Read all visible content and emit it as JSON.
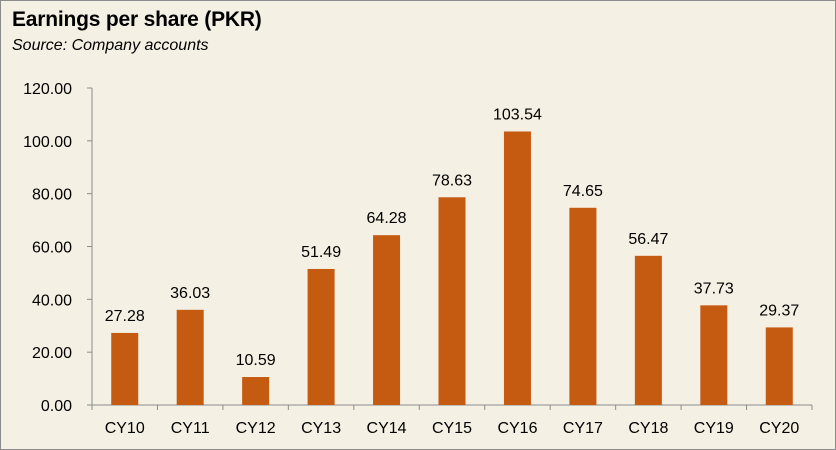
{
  "chart_data": {
    "type": "bar",
    "title": "Earnings per share (PKR)",
    "subtitle": "Source: Company accounts",
    "xlabel": "",
    "ylabel": "",
    "categories": [
      "CY10",
      "CY11",
      "CY12",
      "CY13",
      "CY14",
      "CY15",
      "CY16",
      "CY17",
      "CY18",
      "CY19",
      "CY20"
    ],
    "values": [
      27.28,
      36.03,
      10.59,
      51.49,
      64.28,
      78.63,
      103.54,
      74.65,
      56.47,
      37.73,
      29.37
    ],
    "value_labels": [
      "27.28",
      "36.03",
      "10.59",
      "51.49",
      "64.28",
      "78.63",
      "103.54",
      "74.65",
      "56.47",
      "37.73",
      "29.37"
    ],
    "ylim": [
      0,
      120
    ],
    "y_ticks": [
      "0.00",
      "20.00",
      "40.00",
      "60.00",
      "80.00",
      "100.00",
      "120.00"
    ],
    "grid": false,
    "legend": "none",
    "colors": {
      "bar": "#c55a11",
      "background": "#f4f0e3",
      "axis": "#8c8c8c"
    }
  }
}
